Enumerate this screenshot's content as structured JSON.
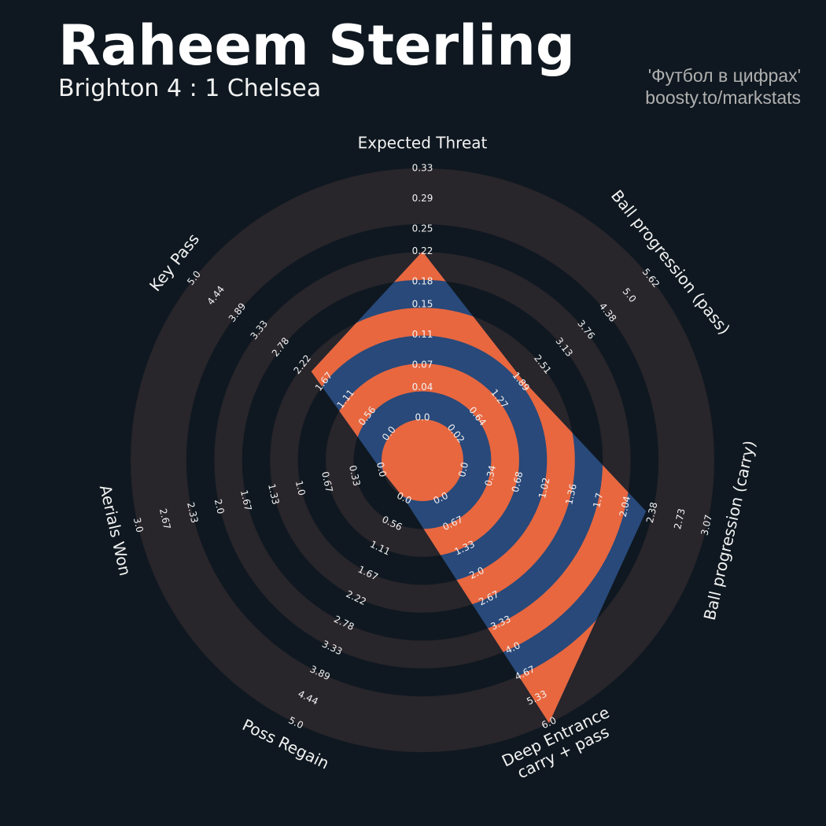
{
  "chart_data": {
    "type": "radar",
    "title": "Raheem Sterling",
    "subtitle": "Brighton 4 : 1 Chelsea",
    "credits": [
      "'Футбол в цифрах'",
      "boosty.to/markstats"
    ],
    "colors": {
      "background": "#0f1820",
      "rings": "#28252b",
      "polygon": "#28497a",
      "highlight": "#e8673f"
    },
    "params": [
      {
        "name": "Expected Threat",
        "lim": [
          0,
          0.33
        ],
        "value": 0.22,
        "ticks": [
          {
            "value": 0,
            "label": "0.0"
          },
          0.04,
          0.07,
          0.11,
          0.15,
          0.18,
          0.22,
          0.25,
          0.29,
          0.33
        ]
      },
      {
        "name": "Ball progression (pass)",
        "lim": [
          0.02,
          5.62
        ],
        "value": 1.95,
        "ticks": [
          0.02,
          0.64,
          1.27,
          1.89,
          2.51,
          3.13,
          3.76,
          4.38,
          {
            "value": 5,
            "label": "5.0"
          },
          5.62
        ]
      },
      {
        "name": "Ball progression (carry)",
        "lim": [
          0,
          3.07
        ],
        "value": 2.3,
        "ticks": [
          {
            "value": 0,
            "label": "0.0"
          },
          0.34,
          0.68,
          1.02,
          1.36,
          1.7,
          2.04,
          2.38,
          2.73,
          3.07
        ]
      },
      {
        "name": "Deep Entrance\ncarry + pass",
        "lim": [
          0,
          6
        ],
        "value": 6,
        "ticks": [
          {
            "value": 0,
            "label": "0.0"
          },
          0.67,
          1.33,
          {
            "value": 2,
            "label": "2.0"
          },
          2.67,
          3.33,
          {
            "value": 4,
            "label": "4.0"
          },
          4.67,
          5.33,
          {
            "value": 6,
            "label": "6.0"
          }
        ]
      },
      {
        "name": "Poss Regain",
        "lim": [
          0,
          5
        ],
        "value": 0,
        "ticks": [
          {
            "value": 0,
            "label": "0.0"
          },
          0.56,
          1.11,
          1.67,
          2.22,
          2.78,
          3.33,
          3.89,
          4.44,
          {
            "value": 5,
            "label": "5.0"
          }
        ]
      },
      {
        "name": "Aerials Won",
        "lim": [
          0,
          3
        ],
        "value": 0,
        "ticks": [
          {
            "value": 0,
            "label": "0.0"
          },
          0.33,
          0.67,
          {
            "value": 1,
            "label": "1.0"
          },
          1.33,
          1.67,
          {
            "value": 2,
            "label": "2.0"
          },
          2.33,
          2.67,
          {
            "value": 3,
            "label": "3.0"
          }
        ]
      },
      {
        "name": "Key Pass",
        "lim": [
          0,
          5
        ],
        "value": 2,
        "ticks": [
          {
            "value": 0,
            "label": "0.0"
          },
          0.56,
          1.11,
          1.67,
          2.22,
          2.78,
          3.33,
          3.89,
          4.44,
          {
            "value": 5,
            "label": "5.0"
          }
        ]
      }
    ]
  }
}
